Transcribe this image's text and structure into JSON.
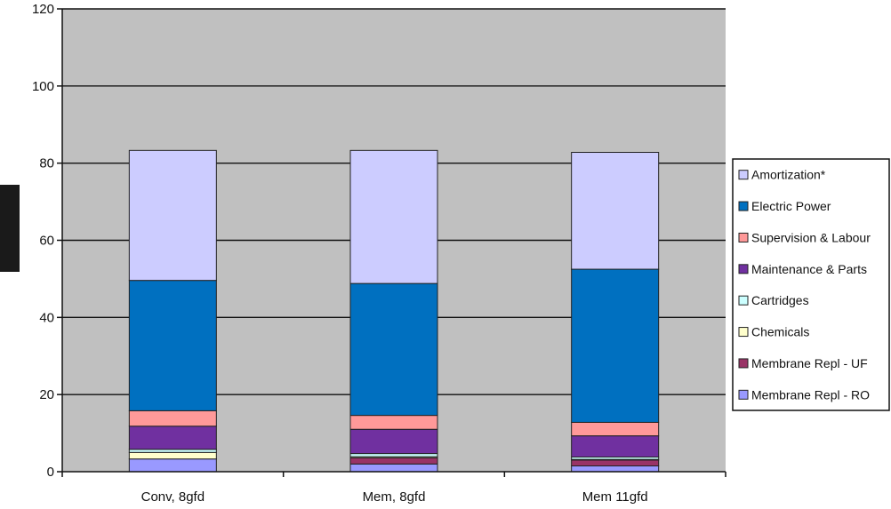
{
  "chart_data": {
    "type": "bar",
    "stacked": true,
    "title": "",
    "xlabel": "",
    "ylabel": "",
    "ylim": [
      0,
      120
    ],
    "yticks": [
      0,
      20,
      40,
      60,
      80,
      100,
      120
    ],
    "grid": true,
    "legend_position": "right",
    "plot_background": "#c0c0c0",
    "categories": [
      "Conv, 8gfd",
      "Mem, 8gfd",
      "Mem 11gfd"
    ],
    "series": [
      {
        "name": "Membrane Repl - RO",
        "color": "#9999ff",
        "values": [
          3.3,
          2.0,
          1.5
        ]
      },
      {
        "name": "Membrane Repl - UF",
        "color": "#993366",
        "values": [
          0.0,
          1.6,
          1.5
        ]
      },
      {
        "name": "Chemicals",
        "color": "#ffffcc",
        "values": [
          1.7,
          0.3,
          0.2
        ]
      },
      {
        "name": "Cartridges",
        "color": "#ccffff",
        "values": [
          0.8,
          0.8,
          0.6
        ]
      },
      {
        "name": "Maintenance & Parts",
        "color": "#7030a0",
        "values": [
          6.0,
          6.3,
          5.5
        ]
      },
      {
        "name": "Supervision & Labour",
        "color": "#ff9999",
        "values": [
          4.0,
          3.6,
          3.5
        ]
      },
      {
        "name": "Electric Power",
        "color": "#0070c0",
        "values": [
          33.8,
          34.2,
          39.7
        ]
      },
      {
        "name": "Amortization*",
        "color": "#ccccff",
        "values": [
          33.7,
          34.5,
          30.3
        ]
      }
    ],
    "legend_order": [
      "Amortization*",
      "Electric Power",
      "Supervision & Labour",
      "Maintenance & Parts",
      "Cartridges",
      "Chemicals",
      "Membrane Repl - UF",
      "Membrane Repl - RO"
    ]
  }
}
